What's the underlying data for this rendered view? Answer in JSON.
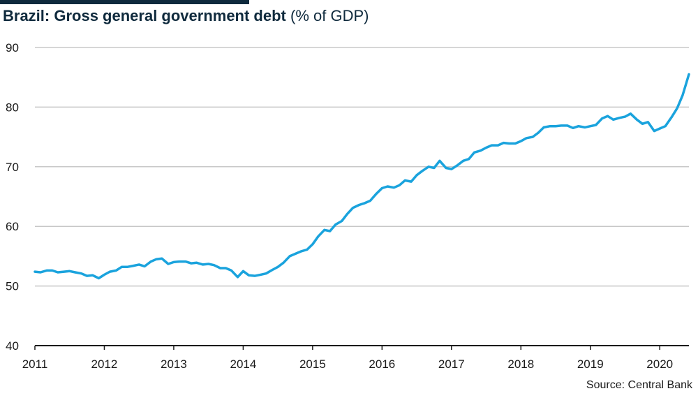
{
  "title": {
    "main": "Brazil: Gross general government debt",
    "unit": "(% of GDP)"
  },
  "source": "Source: Central Bank",
  "colors": {
    "line": "#1aa3dd",
    "grid": "#c8c8c8",
    "axis": "#1a1a1a",
    "title_rule": "#0f2a3d"
  },
  "chart_data": {
    "type": "line",
    "title": "Brazil: Gross general government debt (% of GDP)",
    "xlabel": "",
    "ylabel": "",
    "xlim": [
      2011.0,
      2020.42
    ],
    "ylim": [
      40,
      90
    ],
    "yticks": [
      40,
      50,
      60,
      70,
      80,
      90
    ],
    "xticks": [
      2011,
      2012,
      2013,
      2014,
      2015,
      2016,
      2017,
      2018,
      2019,
      2020
    ],
    "grid": true,
    "series": [
      {
        "name": "Gross general government debt",
        "x": [
          2011.0,
          2011.08,
          2011.17,
          2011.25,
          2011.33,
          2011.42,
          2011.5,
          2011.58,
          2011.67,
          2011.75,
          2011.83,
          2011.92,
          2012.0,
          2012.08,
          2012.17,
          2012.25,
          2012.33,
          2012.42,
          2012.5,
          2012.58,
          2012.67,
          2012.75,
          2012.83,
          2012.92,
          2013.0,
          2013.08,
          2013.17,
          2013.25,
          2013.33,
          2013.42,
          2013.5,
          2013.58,
          2013.67,
          2013.75,
          2013.83,
          2013.92,
          2014.0,
          2014.08,
          2014.17,
          2014.25,
          2014.33,
          2014.42,
          2014.5,
          2014.58,
          2014.67,
          2014.75,
          2014.83,
          2014.92,
          2015.0,
          2015.08,
          2015.17,
          2015.25,
          2015.33,
          2015.42,
          2015.5,
          2015.58,
          2015.67,
          2015.75,
          2015.83,
          2015.92,
          2016.0,
          2016.08,
          2016.17,
          2016.25,
          2016.33,
          2016.42,
          2016.5,
          2016.58,
          2016.67,
          2016.75,
          2016.83,
          2016.92,
          2017.0,
          2017.08,
          2017.17,
          2017.25,
          2017.33,
          2017.42,
          2017.5,
          2017.58,
          2017.67,
          2017.75,
          2017.83,
          2017.92,
          2018.0,
          2018.08,
          2018.17,
          2018.25,
          2018.33,
          2018.42,
          2018.5,
          2018.58,
          2018.67,
          2018.75,
          2018.83,
          2018.92,
          2019.0,
          2019.08,
          2019.17,
          2019.25,
          2019.33,
          2019.42,
          2019.5,
          2019.58,
          2019.67,
          2019.75,
          2019.83,
          2019.92,
          2020.0,
          2020.08,
          2020.17,
          2020.25,
          2020.33,
          2020.42
        ],
        "values": [
          52.4,
          52.3,
          52.6,
          52.6,
          52.3,
          52.4,
          52.5,
          52.3,
          52.1,
          51.7,
          51.8,
          51.3,
          51.9,
          52.4,
          52.6,
          53.2,
          53.2,
          53.4,
          53.6,
          53.3,
          54.1,
          54.5,
          54.6,
          53.7,
          54.0,
          54.1,
          54.1,
          53.8,
          53.9,
          53.6,
          53.7,
          53.5,
          53.0,
          53.0,
          52.6,
          51.5,
          52.5,
          51.8,
          51.7,
          51.9,
          52.1,
          52.7,
          53.2,
          53.9,
          55.0,
          55.4,
          55.8,
          56.1,
          57.0,
          58.3,
          59.4,
          59.2,
          60.3,
          60.9,
          62.1,
          63.1,
          63.6,
          63.9,
          64.3,
          65.5,
          66.4,
          66.7,
          66.5,
          66.9,
          67.7,
          67.5,
          68.6,
          69.3,
          70.0,
          69.8,
          71.0,
          69.8,
          69.6,
          70.2,
          71.0,
          71.3,
          72.4,
          72.7,
          73.2,
          73.6,
          73.6,
          74.0,
          73.9,
          73.9,
          74.3,
          74.8,
          75.0,
          75.7,
          76.6,
          76.8,
          76.8,
          76.9,
          76.9,
          76.5,
          76.8,
          76.6,
          76.8,
          77.0,
          78.1,
          78.5,
          77.9,
          78.2,
          78.4,
          78.9,
          77.9,
          77.2,
          77.5,
          76.0,
          76.4,
          76.8,
          78.3,
          79.8,
          82.0,
          85.5
        ]
      }
    ]
  }
}
